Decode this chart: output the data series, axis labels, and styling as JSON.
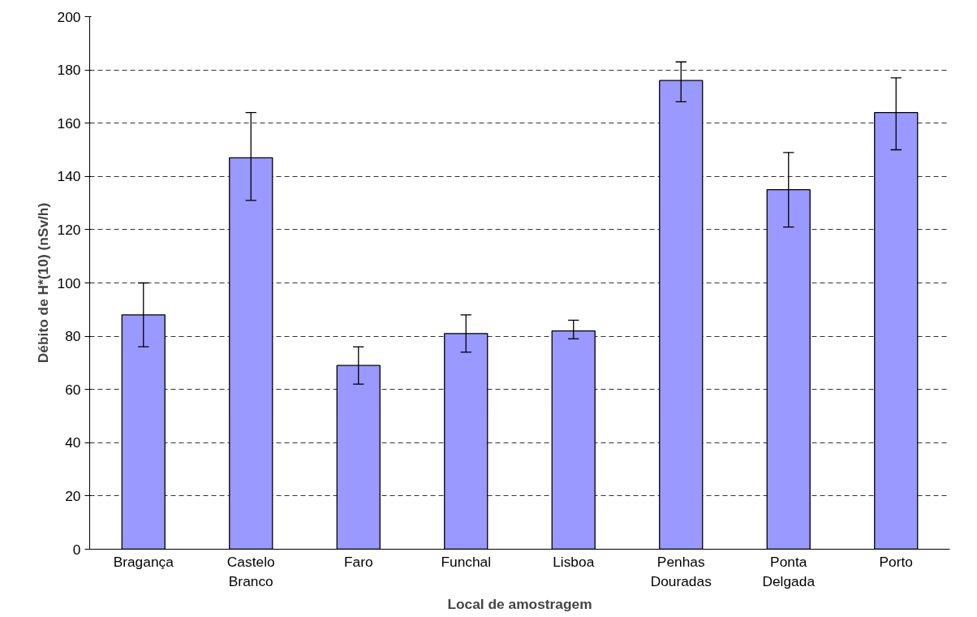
{
  "chart_data": {
    "type": "bar",
    "xlabel": "Local de amostragem",
    "ylabel": "Débito de H*(10) (nSv/h)",
    "categories": [
      "Bragança",
      "Castelo\nBranco",
      "Faro",
      "Funchal",
      "Lisboa",
      "Penhas\nDouradas",
      "Ponta\nDelgada",
      "Porto"
    ],
    "values": [
      88,
      147,
      69,
      81,
      82,
      176,
      135,
      164
    ],
    "errors": [
      [
        76,
        100
      ],
      [
        131,
        164
      ],
      [
        62,
        76
      ],
      [
        74,
        88
      ],
      [
        79,
        86
      ],
      [
        168,
        183
      ],
      [
        121,
        149
      ],
      [
        150,
        177
      ]
    ],
    "color": "#9999ff",
    "ylim": [
      0,
      200
    ],
    "yticks": [
      0,
      20,
      40,
      60,
      80,
      100,
      120,
      140,
      160,
      180,
      200
    ],
    "grid": "y",
    "line_style": "dashed"
  }
}
